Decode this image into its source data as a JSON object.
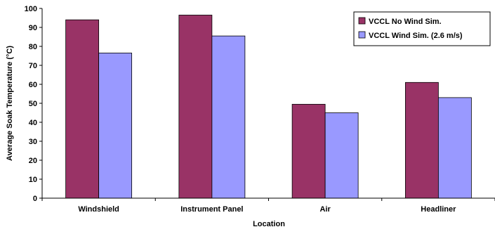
{
  "chart_data": {
    "type": "bar",
    "title": "",
    "xlabel": "Location",
    "ylabel": "Average Soak Temperature (°C)",
    "ylim": [
      0,
      100
    ],
    "yticks": [
      0,
      10,
      20,
      30,
      40,
      50,
      60,
      70,
      80,
      90,
      100
    ],
    "grid": false,
    "legend_position": "top-right",
    "categories": [
      "Windshield",
      "Instrument Panel",
      "Air",
      "Headliner"
    ],
    "series": [
      {
        "name": "VCCL No Wind Sim.",
        "color": "#993366",
        "values": [
          94,
          96.5,
          49.5,
          61
        ]
      },
      {
        "name": "VCCL Wind Sim. (2.6 m/s)",
        "color": "#9999ff",
        "values": [
          76.5,
          85.5,
          45,
          53
        ]
      }
    ]
  }
}
